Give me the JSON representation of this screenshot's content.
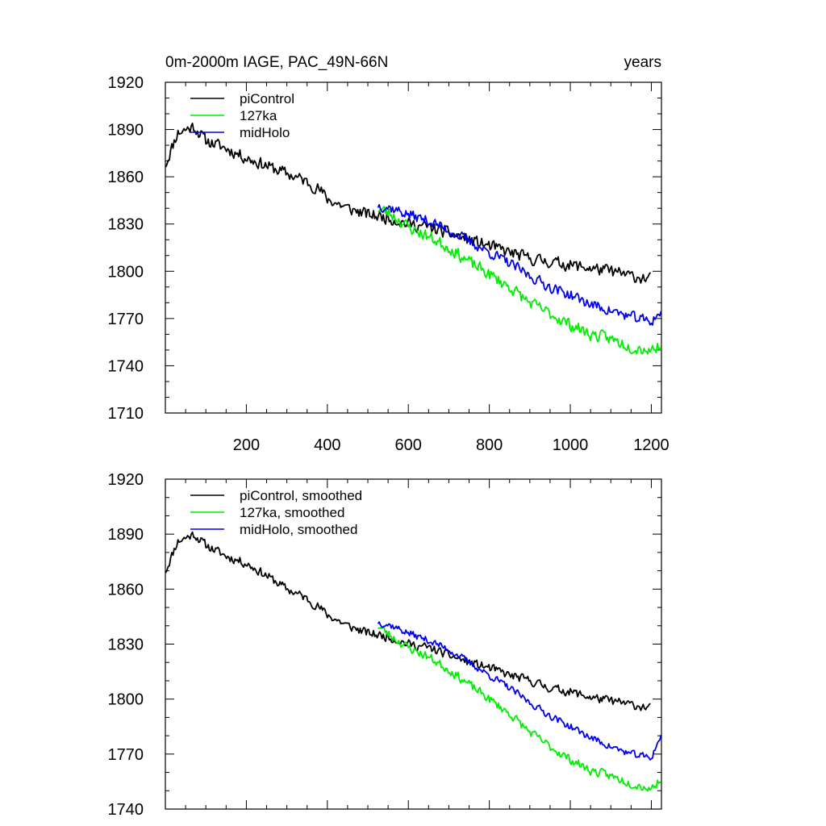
{
  "chart_data": [
    {
      "type": "line",
      "title_left": "0m-2000m IAGE, PAC_49N-66N",
      "title_right": "years",
      "xlabel": "",
      "ylabel": "",
      "xlim": [
        0,
        1225
      ],
      "ylim": [
        1710,
        1920
      ],
      "yticks": [
        1710,
        1740,
        1770,
        1800,
        1830,
        1860,
        1890,
        1920
      ],
      "xticks": [
        200,
        400,
        600,
        800,
        1000,
        1200
      ],
      "show_x_tick_labels": true,
      "legend_position": "top-left",
      "series": [
        {
          "name": "piControl",
          "color": "#000000",
          "start": 1,
          "end": 1200,
          "anchors": [
            [
              1,
              1868
            ],
            [
              30,
              1888
            ],
            [
              70,
              1892
            ],
            [
              100,
              1883
            ],
            [
              150,
              1878
            ],
            [
              200,
              1872
            ],
            [
              260,
              1866
            ],
            [
              300,
              1862
            ],
            [
              340,
              1858
            ],
            [
              380,
              1852
            ],
            [
              400,
              1846
            ],
            [
              450,
              1840
            ],
            [
              500,
              1836
            ],
            [
              550,
              1834
            ],
            [
              600,
              1830
            ],
            [
              650,
              1828
            ],
            [
              700,
              1824
            ],
            [
              750,
              1820
            ],
            [
              800,
              1816
            ],
            [
              850,
              1812
            ],
            [
              900,
              1808
            ],
            [
              950,
              1806
            ],
            [
              1000,
              1804
            ],
            [
              1050,
              1802
            ],
            [
              1100,
              1800
            ],
            [
              1150,
              1797
            ],
            [
              1200,
              1795
            ]
          ],
          "noise": 8,
          "seed": 11
        },
        {
          "name": "127ka",
          "color": "#00ee00",
          "start": 525,
          "end": 1225,
          "anchors": [
            [
              525,
              1840
            ],
            [
              560,
              1836
            ],
            [
              600,
              1828
            ],
            [
              650,
              1822
            ],
            [
              700,
              1815
            ],
            [
              750,
              1806
            ],
            [
              800,
              1798
            ],
            [
              850,
              1790
            ],
            [
              900,
              1780
            ],
            [
              950,
              1773
            ],
            [
              1000,
              1766
            ],
            [
              1050,
              1760
            ],
            [
              1100,
              1757
            ],
            [
              1150,
              1752
            ],
            [
              1200,
              1750
            ],
            [
              1225,
              1754
            ]
          ],
          "noise": 8,
          "seed": 23
        },
        {
          "name": "midHolo",
          "color": "#0000ee",
          "start": 525,
          "end": 1225,
          "anchors": [
            [
              525,
              1842
            ],
            [
              560,
              1840
            ],
            [
              600,
              1836
            ],
            [
              650,
              1832
            ],
            [
              700,
              1826
            ],
            [
              750,
              1819
            ],
            [
              800,
              1812
            ],
            [
              850,
              1805
            ],
            [
              900,
              1797
            ],
            [
              950,
              1790
            ],
            [
              1000,
              1785
            ],
            [
              1050,
              1779
            ],
            [
              1100,
              1775
            ],
            [
              1150,
              1771
            ],
            [
              1200,
              1768
            ],
            [
              1225,
              1775
            ]
          ],
          "noise": 7,
          "seed": 37
        }
      ]
    },
    {
      "type": "line",
      "title_left": "",
      "title_right": "",
      "xlabel": "",
      "ylabel": "",
      "xlim": [
        0,
        1225
      ],
      "ylim": [
        1740,
        1920
      ],
      "yticks": [
        1740,
        1770,
        1800,
        1830,
        1860,
        1890,
        1920
      ],
      "xticks": [
        200,
        400,
        600,
        800,
        1000,
        1200
      ],
      "show_x_tick_labels": false,
      "legend_position": "top-left",
      "series": [
        {
          "name": "piControl, smoothed",
          "color": "#000000",
          "start": 1,
          "end": 1200,
          "anchors": [
            [
              1,
              1870
            ],
            [
              30,
              1886
            ],
            [
              70,
              1890
            ],
            [
              100,
              1884
            ],
            [
              150,
              1878
            ],
            [
              200,
              1874
            ],
            [
              260,
              1866
            ],
            [
              300,
              1860
            ],
            [
              340,
              1856
            ],
            [
              380,
              1850
            ],
            [
              400,
              1846
            ],
            [
              450,
              1840
            ],
            [
              500,
              1836
            ],
            [
              550,
              1834
            ],
            [
              600,
              1830
            ],
            [
              650,
              1828
            ],
            [
              700,
              1824
            ],
            [
              750,
              1820
            ],
            [
              800,
              1817
            ],
            [
              850,
              1813
            ],
            [
              900,
              1810
            ],
            [
              950,
              1806
            ],
            [
              1000,
              1804
            ],
            [
              1050,
              1801
            ],
            [
              1100,
              1799
            ],
            [
              1150,
              1797
            ],
            [
              1200,
              1795
            ]
          ],
          "noise": 5,
          "seed": 11
        },
        {
          "name": "127ka, smoothed",
          "color": "#00ee00",
          "start": 525,
          "end": 1225,
          "anchors": [
            [
              525,
              1840
            ],
            [
              560,
              1834
            ],
            [
              600,
              1828
            ],
            [
              650,
              1823
            ],
            [
              700,
              1816
            ],
            [
              750,
              1808
            ],
            [
              800,
              1800
            ],
            [
              850,
              1792
            ],
            [
              900,
              1782
            ],
            [
              950,
              1774
            ],
            [
              1000,
              1767
            ],
            [
              1050,
              1761
            ],
            [
              1100,
              1758
            ],
            [
              1150,
              1754
            ],
            [
              1200,
              1751
            ],
            [
              1225,
              1757
            ]
          ],
          "noise": 5,
          "seed": 23
        },
        {
          "name": "midHolo, smoothed",
          "color": "#0000ee",
          "start": 525,
          "end": 1225,
          "anchors": [
            [
              525,
              1842
            ],
            [
              560,
              1840
            ],
            [
              600,
              1836
            ],
            [
              650,
              1832
            ],
            [
              700,
              1827
            ],
            [
              750,
              1820
            ],
            [
              800,
              1813
            ],
            [
              850,
              1806
            ],
            [
              900,
              1798
            ],
            [
              950,
              1791
            ],
            [
              1000,
              1785
            ],
            [
              1050,
              1779
            ],
            [
              1100,
              1774
            ],
            [
              1150,
              1770
            ],
            [
              1200,
              1768
            ],
            [
              1225,
              1781
            ]
          ],
          "noise": 4,
          "seed": 37
        }
      ]
    }
  ]
}
